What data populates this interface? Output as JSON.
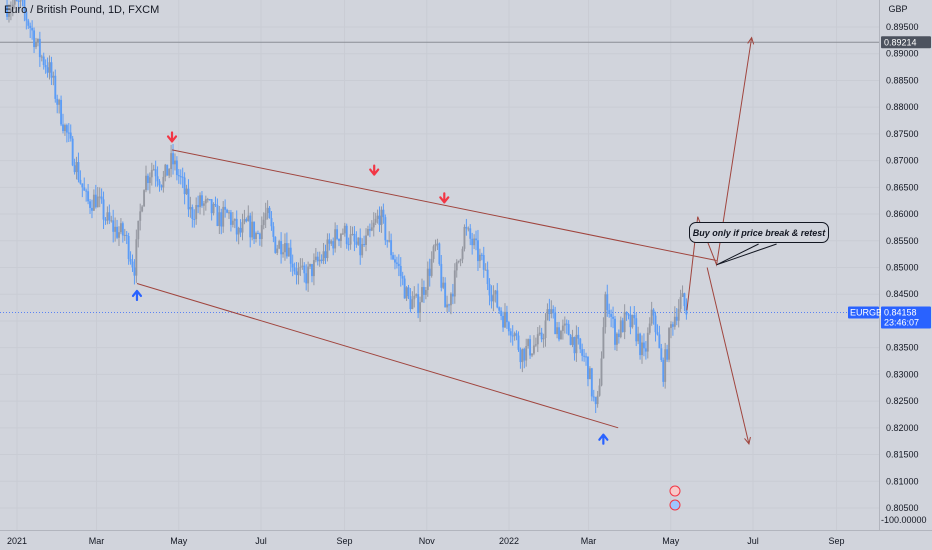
{
  "header": {
    "title": "Euro / British Pound, 1D, FXCM"
  },
  "price_axis": {
    "currency": "GBP",
    "ticks": [
      "0.89500",
      "0.89000",
      "0.88500",
      "0.88000",
      "0.87500",
      "0.87000",
      "0.86500",
      "0.86000",
      "0.85500",
      "0.85000",
      "0.84500",
      "0.84000",
      "0.83500",
      "0.83000",
      "0.82500",
      "0.82000",
      "0.81500",
      "0.81000",
      "0.80500"
    ],
    "bottom_label": "-100.00000"
  },
  "time_axis": {
    "ticks": [
      "2021",
      "Mar",
      "May",
      "Jul",
      "Sep",
      "Nov",
      "2022",
      "Mar",
      "May",
      "Jul",
      "Sep"
    ]
  },
  "markers": {
    "level_label": "0.89214",
    "symbol_label": "EURGBP",
    "last_price_label": "0.84158",
    "countdown_label": "23:46:07"
  },
  "annotation": {
    "text": "Buy only if price break & retest"
  },
  "colors": {
    "background": "#d1d4dc",
    "up_candle": "#9598a1",
    "down_candle": "#5b9cf6",
    "trendline": "#a0453e",
    "marker_blue": "#2962ff",
    "arrow_red": "#f23645",
    "arrow_blue": "#2962ff"
  },
  "chart_data": {
    "type": "candlestick",
    "symbol": "EURGBP",
    "timeframe": "1D",
    "ylim": [
      0.8045,
      0.8985
    ],
    "series_close": [
      [
        "2021-01-04",
        0.899
      ],
      [
        "2021-01-11",
        0.895
      ],
      [
        "2021-01-18",
        0.89
      ],
      [
        "2021-01-25",
        0.887
      ],
      [
        "2021-02-01",
        0.88
      ],
      [
        "2021-02-08",
        0.874
      ],
      [
        "2021-02-15",
        0.868
      ],
      [
        "2021-02-22",
        0.862
      ],
      [
        "2021-03-01",
        0.863
      ],
      [
        "2021-03-08",
        0.859
      ],
      [
        "2021-03-15",
        0.857
      ],
      [
        "2021-03-22",
        0.856
      ],
      [
        "2021-03-29",
        0.85
      ],
      [
        "2021-04-05",
        0.866
      ],
      [
        "2021-04-12",
        0.869
      ],
      [
        "2021-04-19",
        0.866
      ],
      [
        "2021-04-26",
        0.87
      ],
      [
        "2021-05-03",
        0.866
      ],
      [
        "2021-05-10",
        0.86
      ],
      [
        "2021-05-17",
        0.862
      ],
      [
        "2021-05-24",
        0.861
      ],
      [
        "2021-05-31",
        0.859
      ],
      [
        "2021-06-07",
        0.86
      ],
      [
        "2021-06-14",
        0.856
      ],
      [
        "2021-06-21",
        0.858
      ],
      [
        "2021-06-28",
        0.856
      ],
      [
        "2021-07-05",
        0.86
      ],
      [
        "2021-07-12",
        0.854
      ],
      [
        "2021-07-19",
        0.855
      ],
      [
        "2021-07-26",
        0.85
      ],
      [
        "2021-08-02",
        0.848
      ],
      [
        "2021-08-09",
        0.85
      ],
      [
        "2021-08-16",
        0.852
      ],
      [
        "2021-08-23",
        0.855
      ],
      [
        "2021-08-30",
        0.857
      ],
      [
        "2021-09-06",
        0.855
      ],
      [
        "2021-09-13",
        0.853
      ],
      [
        "2021-09-20",
        0.856
      ],
      [
        "2021-09-27",
        0.86
      ],
      [
        "2021-10-04",
        0.854
      ],
      [
        "2021-10-11",
        0.85
      ],
      [
        "2021-10-18",
        0.844
      ],
      [
        "2021-10-25",
        0.843
      ],
      [
        "2021-11-01",
        0.848
      ],
      [
        "2021-11-08",
        0.854
      ],
      [
        "2021-11-15",
        0.842
      ],
      [
        "2021-11-22",
        0.848
      ],
      [
        "2021-11-29",
        0.857
      ],
      [
        "2021-12-06",
        0.854
      ],
      [
        "2021-12-13",
        0.85
      ],
      [
        "2021-12-20",
        0.845
      ],
      [
        "2021-12-27",
        0.841
      ],
      [
        "2022-01-03",
        0.839
      ],
      [
        "2022-01-10",
        0.834
      ],
      [
        "2022-01-17",
        0.835
      ],
      [
        "2022-01-24",
        0.836
      ],
      [
        "2022-01-31",
        0.842
      ],
      [
        "2022-02-07",
        0.838
      ],
      [
        "2022-02-14",
        0.838
      ],
      [
        "2022-02-21",
        0.835
      ],
      [
        "2022-02-28",
        0.832
      ],
      [
        "2022-03-07",
        0.822
      ],
      [
        "2022-03-14",
        0.845
      ],
      [
        "2022-03-21",
        0.837
      ],
      [
        "2022-03-28",
        0.84
      ],
      [
        "2022-04-04",
        0.839
      ],
      [
        "2022-04-11",
        0.833
      ],
      [
        "2022-04-18",
        0.842
      ],
      [
        "2022-04-25",
        0.83
      ],
      [
        "2022-05-02",
        0.84
      ],
      [
        "2022-05-09",
        0.844
      ],
      [
        "2022-05-13",
        0.8416
      ]
    ],
    "annotations": {
      "horizontal_level": 0.89214,
      "last_price": 0.84158,
      "upper_trendline": [
        [
          "2021-04-26",
          0.872
        ],
        [
          "2022-06-04",
          0.8513
        ]
      ],
      "lower_trendline": [
        [
          "2021-03-31",
          0.847
        ],
        [
          "2022-03-23",
          0.82
        ]
      ],
      "projection_up": [
        [
          "2022-05-13",
          0.842
        ],
        [
          "2022-05-21",
          0.8595
        ],
        [
          "2022-06-04",
          0.8505
        ],
        [
          "2022-06-30",
          0.893
        ]
      ],
      "projection_down": [
        [
          "2022-05-28",
          0.85
        ],
        [
          "2022-06-28",
          0.817
        ]
      ],
      "red_down_arrows": [
        [
          "2021-04-26",
          0.8734
        ],
        [
          "2021-09-23",
          0.8672
        ],
        [
          "2021-11-14",
          0.862
        ]
      ],
      "blue_up_arrows": [
        [
          "2021-03-31",
          0.8458
        ],
        [
          "2022-03-12",
          0.8189
        ]
      ]
    }
  }
}
